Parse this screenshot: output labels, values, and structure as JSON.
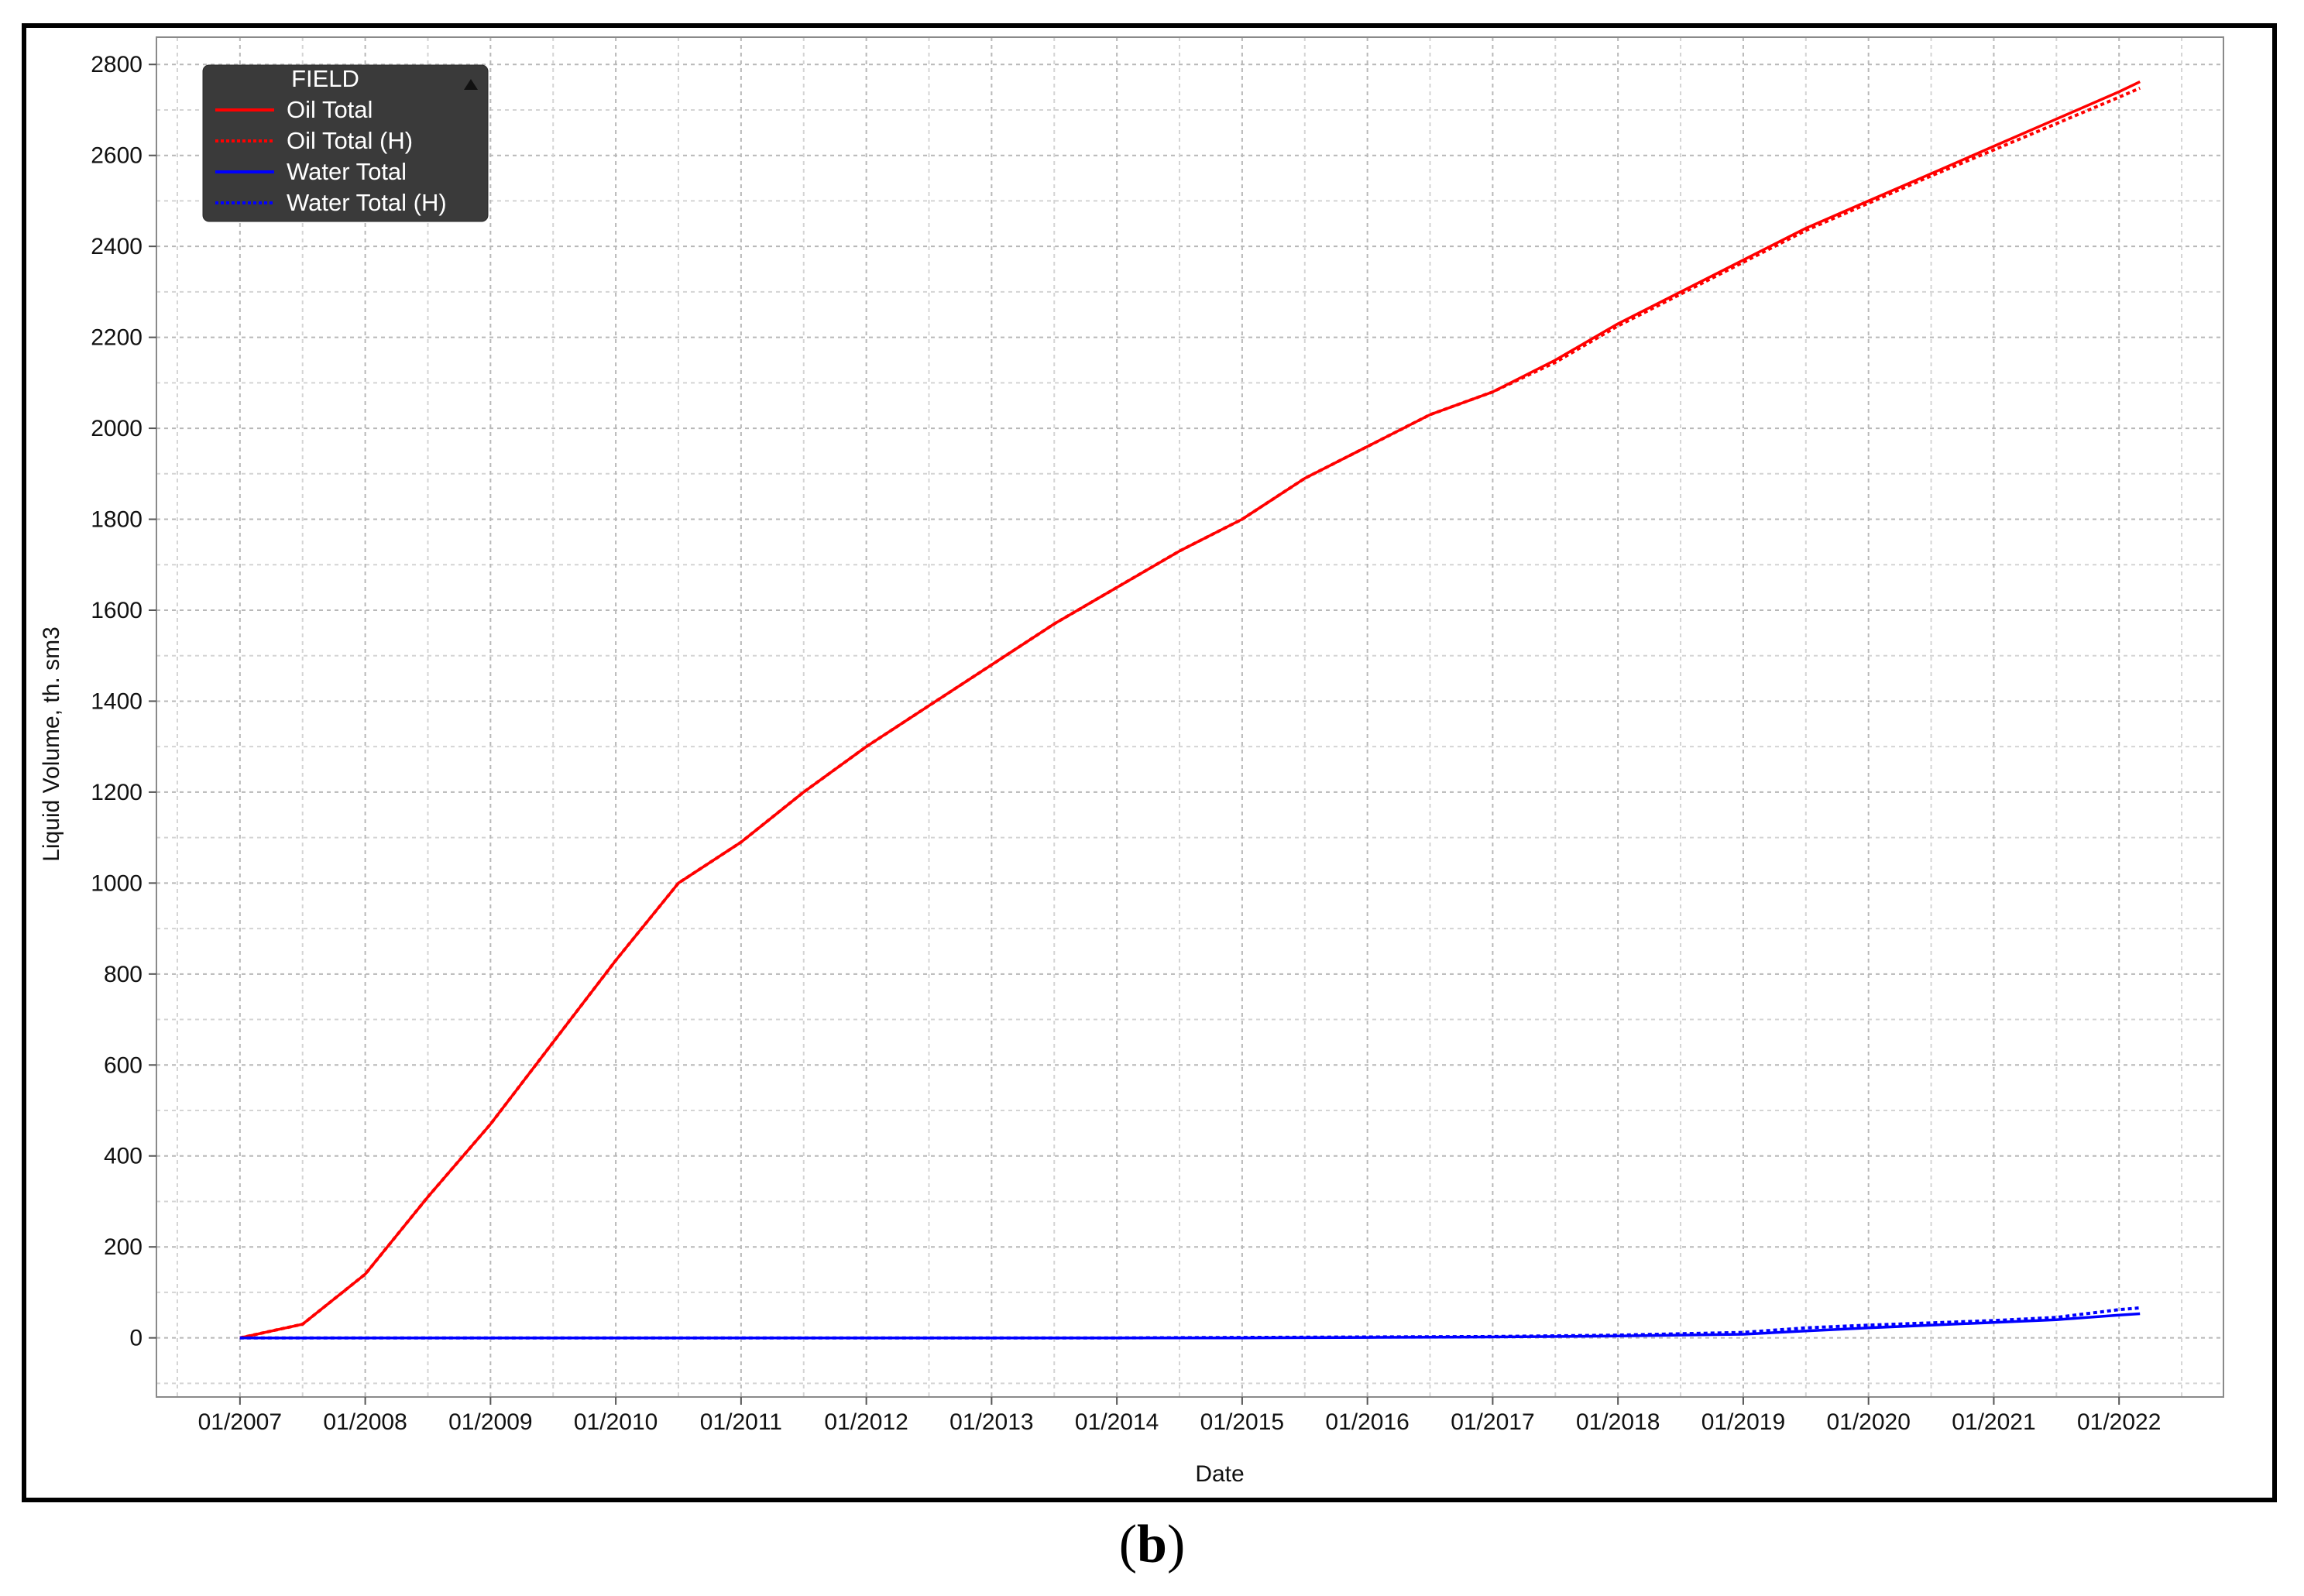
{
  "caption": {
    "open": "(",
    "letter": "b",
    "close": ")"
  },
  "chart_data": {
    "type": "line",
    "title": "",
    "xlabel": "Date",
    "ylabel": "Liquid Volume, th. sm3",
    "ylim": [
      -130,
      2860
    ],
    "xlim": [
      "2006-05-01",
      "2022-11-01"
    ],
    "yticks": [
      0,
      200,
      400,
      600,
      800,
      1000,
      1200,
      1400,
      1600,
      1800,
      2000,
      2200,
      2400,
      2600,
      2800
    ],
    "xticks": [
      "01/2007",
      "01/2008",
      "01/2009",
      "01/2010",
      "01/2011",
      "01/2012",
      "01/2013",
      "01/2014",
      "01/2015",
      "01/2016",
      "01/2017",
      "01/2018",
      "01/2019",
      "01/2020",
      "01/2021",
      "01/2022"
    ],
    "grid": true,
    "legend": {
      "title": "FIELD",
      "position": "top-left"
    },
    "series": [
      {
        "name": "Oil Total",
        "color": "#ff0000",
        "style": "solid",
        "x": [
          "2007-01",
          "2007-07",
          "2008-01",
          "2008-07",
          "2009-01",
          "2009-07",
          "2010-01",
          "2010-07",
          "2011-01",
          "2011-07",
          "2012-01",
          "2012-07",
          "2013-01",
          "2013-07",
          "2014-01",
          "2014-07",
          "2015-01",
          "2015-07",
          "2016-01",
          "2016-07",
          "2017-01",
          "2017-07",
          "2018-01",
          "2018-07",
          "2019-01",
          "2019-07",
          "2020-01",
          "2020-07",
          "2021-01",
          "2021-07",
          "2022-01",
          "2022-03"
        ],
        "y": [
          0,
          30,
          140,
          310,
          470,
          650,
          830,
          1000,
          1090,
          1200,
          1300,
          1390,
          1480,
          1570,
          1650,
          1730,
          1800,
          1890,
          1960,
          2030,
          2080,
          2150,
          2230,
          2300,
          2370,
          2440,
          2500,
          2560,
          2620,
          2680,
          2740,
          2762
        ]
      },
      {
        "name": "Oil Total (H)",
        "color": "#ff0000",
        "style": "dotted",
        "x": [
          "2007-01",
          "2007-07",
          "2008-01",
          "2008-07",
          "2009-01",
          "2009-07",
          "2010-01",
          "2010-07",
          "2011-01",
          "2011-07",
          "2012-01",
          "2012-07",
          "2013-01",
          "2013-07",
          "2014-01",
          "2014-07",
          "2015-01",
          "2015-07",
          "2016-01",
          "2016-07",
          "2017-01",
          "2017-07",
          "2018-01",
          "2018-07",
          "2019-01",
          "2019-07",
          "2020-01",
          "2020-07",
          "2021-01",
          "2021-07",
          "2022-01",
          "2022-03"
        ],
        "y": [
          0,
          30,
          140,
          310,
          470,
          650,
          830,
          1000,
          1090,
          1200,
          1300,
          1390,
          1480,
          1570,
          1650,
          1730,
          1800,
          1890,
          1960,
          2030,
          2080,
          2145,
          2225,
          2295,
          2365,
          2435,
          2495,
          2555,
          2612,
          2670,
          2728,
          2748
        ]
      },
      {
        "name": "Water Total",
        "color": "#0000ff",
        "style": "solid",
        "x": [
          "2007-01",
          "2008-01",
          "2009-01",
          "2010-01",
          "2011-01",
          "2012-01",
          "2013-01",
          "2014-01",
          "2015-01",
          "2016-01",
          "2017-01",
          "2018-01",
          "2019-01",
          "2019-07",
          "2020-01",
          "2020-07",
          "2021-01",
          "2021-07",
          "2022-01",
          "2022-03"
        ],
        "y": [
          0,
          0,
          0,
          0,
          0,
          0,
          0,
          0,
          0,
          1,
          2,
          4,
          8,
          15,
          22,
          28,
          34,
          40,
          50,
          53
        ]
      },
      {
        "name": "Water Total (H)",
        "color": "#0000ff",
        "style": "dotted",
        "x": [
          "2007-01",
          "2008-01",
          "2009-01",
          "2010-01",
          "2011-01",
          "2012-01",
          "2013-01",
          "2014-01",
          "2015-01",
          "2016-01",
          "2017-01",
          "2018-01",
          "2019-01",
          "2019-07",
          "2020-01",
          "2020-07",
          "2021-01",
          "2021-07",
          "2022-01",
          "2022-03"
        ],
        "y": [
          0,
          0,
          0,
          0,
          0,
          0,
          0,
          0,
          1,
          2,
          3,
          6,
          12,
          22,
          28,
          33,
          38,
          45,
          62,
          66
        ]
      }
    ]
  }
}
